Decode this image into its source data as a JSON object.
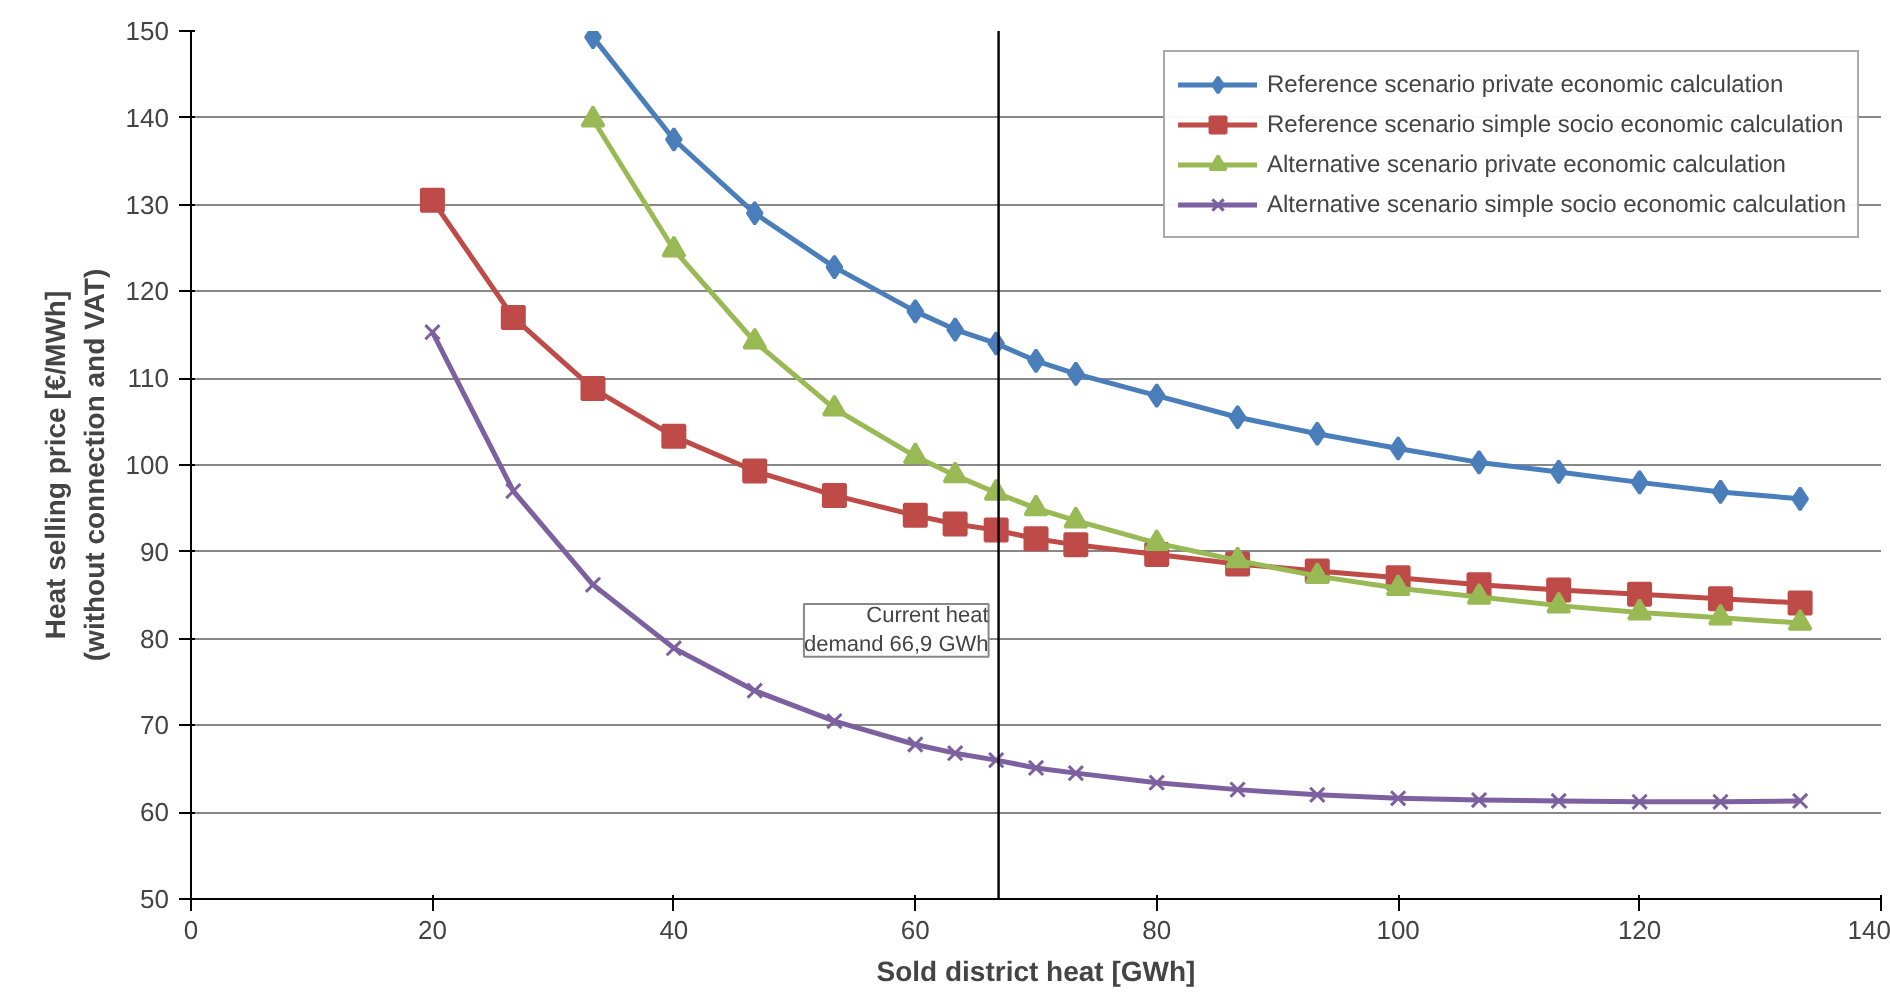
{
  "chart_data": {
    "type": "line",
    "xlabel": "Sold district heat [GWh]",
    "ylabel": "Heat selling price [€/MWh]\n(without connection and VAT)",
    "xlim": [
      0,
      140
    ],
    "xticks": [
      0,
      20,
      40,
      60,
      80,
      100,
      120,
      140
    ],
    "ylim": [
      50,
      150
    ],
    "yticks": [
      50,
      60,
      70,
      80,
      90,
      100,
      110,
      120,
      130,
      140,
      150
    ],
    "grid": "y",
    "legend": "top right",
    "series": [
      {
        "name": "Reference scenario private economic calculation",
        "color": "#4a7ebb",
        "marker": "diamond",
        "x": [
          33.3,
          40,
          46.7,
          53.3,
          60,
          63.3,
          66.7,
          70,
          73.3,
          80,
          86.7,
          93.3,
          100,
          106.7,
          113.3,
          120,
          126.7,
          133.3
        ],
        "values": [
          149.3,
          137.5,
          129,
          122.8,
          117.7,
          115.6,
          114,
          112,
          110.5,
          108,
          105.5,
          103.6,
          101.9,
          100.3,
          99.2,
          98,
          96.9,
          96.1
        ]
      },
      {
        "name": "Reference scenario simple socio economic calculation",
        "color": "#be4b48",
        "marker": "square",
        "x": [
          20,
          26.7,
          33.3,
          40,
          46.7,
          53.3,
          60,
          63.3,
          66.7,
          70,
          73.3,
          80,
          86.7,
          93.3,
          100,
          106.7,
          113.3,
          120,
          126.7,
          133.3
        ],
        "values": [
          130.5,
          117,
          108.8,
          103.3,
          99.3,
          96.5,
          94.2,
          93.2,
          92.5,
          91.5,
          90.8,
          89.7,
          88.6,
          87.8,
          87,
          86.2,
          85.6,
          85.1,
          84.6,
          84.1
        ]
      },
      {
        "name": "Alternative scenario private economic calculation",
        "color": "#98b954",
        "marker": "triangle",
        "x": [
          33.3,
          40,
          46.7,
          53.3,
          60,
          63.3,
          66.7,
          70,
          73.3,
          80,
          86.7,
          93.3,
          100,
          106.7,
          113.3,
          120,
          126.7,
          133.3
        ],
        "values": [
          139.8,
          124.8,
          114.2,
          106.5,
          101,
          98.8,
          96.8,
          95,
          93.6,
          91,
          89,
          87.2,
          85.8,
          84.8,
          83.8,
          83,
          82.4,
          81.8
        ]
      },
      {
        "name": "Alternative scenario simple socio economic calculation",
        "color": "#7d60a0",
        "marker": "x",
        "x": [
          20,
          26.7,
          33.3,
          40,
          46.7,
          53.3,
          60,
          63.3,
          66.7,
          70,
          73.3,
          80,
          86.7,
          93.3,
          100,
          106.7,
          113.3,
          120,
          126.7,
          133.3
        ],
        "values": [
          115.3,
          97,
          86.2,
          78.9,
          74,
          70.5,
          67.8,
          66.8,
          66,
          65.1,
          64.5,
          63.4,
          62.6,
          62,
          61.6,
          61.4,
          61.3,
          61.2,
          61.2,
          61.3
        ]
      }
    ],
    "ref_lines": [
      {
        "axis": "x",
        "value": 66.9,
        "label": "Current heat\ndemand 66,9 GWh",
        "color": "#000000"
      }
    ]
  }
}
